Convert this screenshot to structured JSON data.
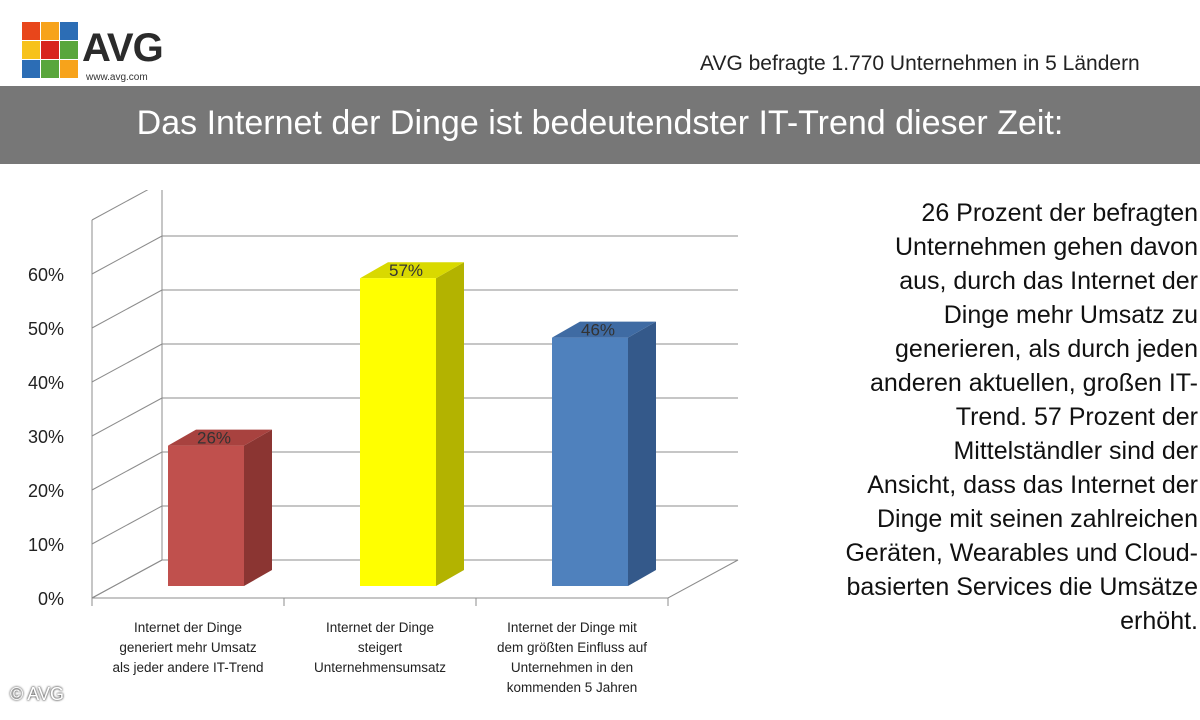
{
  "header": {
    "brand": "AVG",
    "url": "www.avg.com",
    "survey_note": "AVG befragte 1.770 Unternehmen in 5 Ländern",
    "title": "Das Internet der Dinge ist bedeutendster IT-Trend dieser Zeit:"
  },
  "chart_data": {
    "type": "bar",
    "title": "Das Internet der Dinge ist bedeutendster IT-Trend dieser Zeit:",
    "categories": [
      [
        "Internet der Dinge",
        "generiert mehr Umsatz",
        "als jeder andere IT-Trend"
      ],
      [
        "Internet der Dinge",
        "steigert",
        "Unternehmensumsatz"
      ],
      [
        "Internet der Dinge mit",
        "dem größten Einfluss auf",
        "Unternehmen in den",
        "kommenden 5 Jahren"
      ]
    ],
    "values": [
      26,
      57,
      46
    ],
    "value_labels": [
      "26%",
      "57%",
      "46%"
    ],
    "colors": [
      "#c0504d",
      "#ffff00",
      "#4f81bd"
    ],
    "side_colors": [
      "#8b3532",
      "#b3b300",
      "#34598a"
    ],
    "top_colors": [
      "#a8423f",
      "#d9d900",
      "#3f6ba3"
    ],
    "yticks": [
      0,
      10,
      20,
      30,
      40,
      50,
      60
    ],
    "ytick_labels": [
      "0%",
      "10%",
      "20%",
      "30%",
      "40%",
      "50%",
      "60%"
    ],
    "ylim": [
      0,
      70
    ],
    "xlabel": "",
    "ylabel": "",
    "grid": true
  },
  "explanation": "26 Prozent der befragten\nUnternehmen gehen davon\naus, durch das Internet der\nDinge mehr Umsatz zu\ngenerieren, als durch jeden\nanderen aktuellen, großen IT-\nTrend. 57 Prozent der\nMittelständler sind der\nAnsicht, dass das Internet der\nDinge mit seinen zahlreichen\nGeräten, Wearables und Cloud-\nbasierten Services die Umsätze\nerhöht.",
  "footer": {
    "copyright": "© AVG"
  }
}
